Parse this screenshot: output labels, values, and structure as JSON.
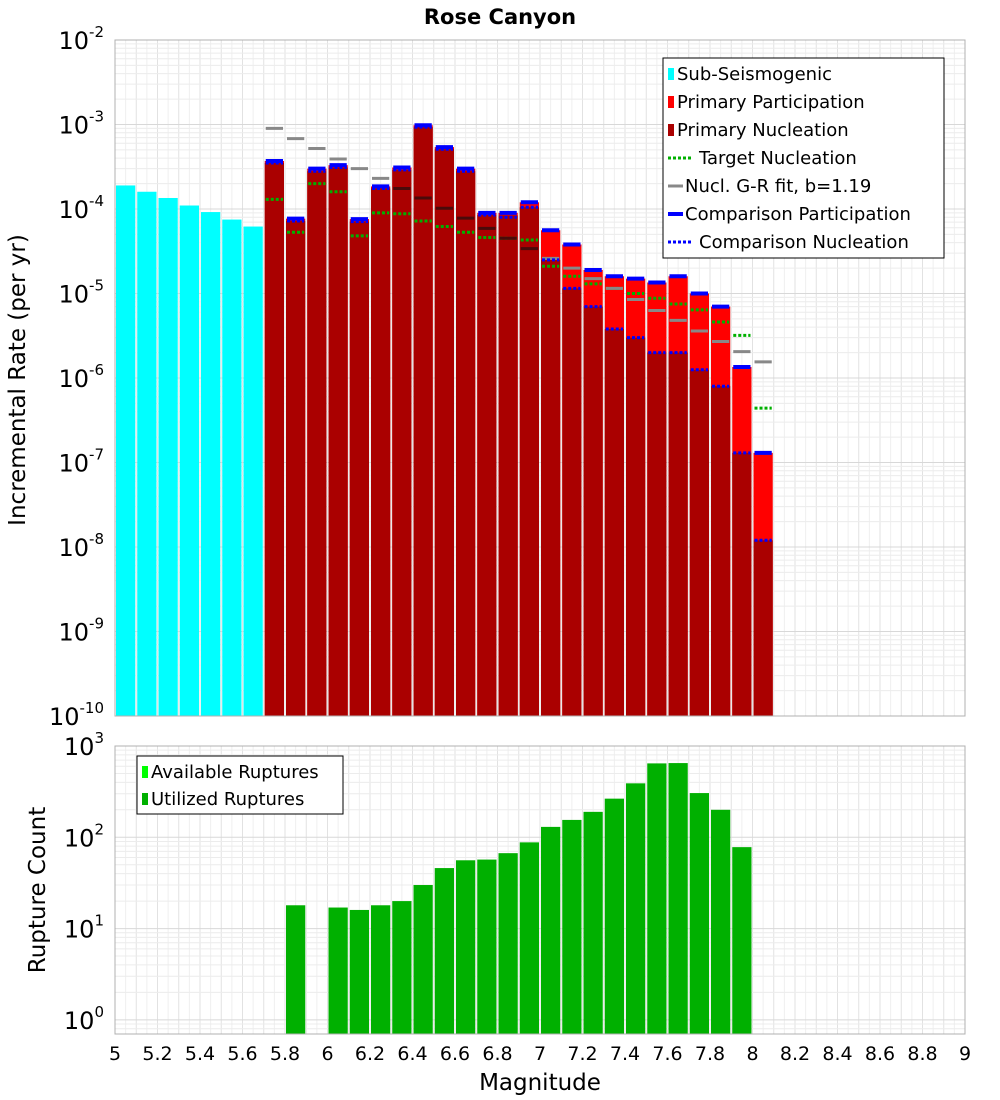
{
  "chart_data": [
    {
      "type": "bar",
      "title": "Rose Canyon",
      "xlabel": "",
      "ylabel": "Incremental Rate (per yr)",
      "yscale": "log",
      "ylim": [
        1e-10,
        0.01
      ],
      "xlim": [
        5,
        9
      ],
      "grid": true,
      "legend_position": "top-right",
      "ytick_labels": [
        {
          "base": "10",
          "exp": "-2"
        },
        {
          "base": "10",
          "exp": "-3"
        },
        {
          "base": "10",
          "exp": "-4"
        },
        {
          "base": "10",
          "exp": "-5"
        },
        {
          "base": "10",
          "exp": "-6"
        },
        {
          "base": "10",
          "exp": "-7"
        },
        {
          "base": "10",
          "exp": "-8"
        },
        {
          "base": "10",
          "exp": "-9"
        },
        {
          "base": "10",
          "exp": "-10"
        }
      ],
      "legend": [
        {
          "label": "Sub-Seismogenic",
          "style": "bar",
          "color": "#00ffff"
        },
        {
          "label": "Primary Participation",
          "style": "bar",
          "color": "#ff0000"
        },
        {
          "label": "Primary Nucleation",
          "style": "bar",
          "color": "#aa0000"
        },
        {
          "label": "Target Nucleation",
          "style": "dotted",
          "color": "#00b000"
        },
        {
          "label": "Nucl. G-R fit, b=1.19",
          "style": "solid",
          "color": "#888888"
        },
        {
          "label": "Comparison Participation",
          "style": "solid-thick",
          "color": "#0000ff"
        },
        {
          "label": "Comparison Nucleation",
          "style": "dotted",
          "color": "#0000ff"
        }
      ],
      "series": [
        {
          "name": "Sub-Seismogenic",
          "color": "#00ffff",
          "x": [
            5.05,
            5.15,
            5.25,
            5.35,
            5.45,
            5.55,
            5.65
          ],
          "values": [
            0.00019,
            0.00016,
            0.000135,
            0.00011,
            9.2e-05,
            7.5e-05,
            6.2e-05
          ]
        },
        {
          "name": "Primary Participation",
          "color": "#ff0000",
          "x": [
            5.75,
            5.85,
            5.95,
            6.05,
            6.15,
            6.25,
            6.35,
            6.45,
            6.55,
            6.65,
            6.75,
            6.85,
            6.95,
            7.05,
            7.15,
            7.25,
            7.35,
            7.45,
            7.55,
            7.65,
            7.75,
            7.85,
            7.95,
            8.05
          ],
          "values": [
            0.00037,
            7.7e-05,
            0.0003,
            0.00033,
            7.6e-05,
            0.000185,
            0.00031,
            0.00098,
            0.00054,
            0.0003,
            9e-05,
            9e-05,
            0.00012,
            5.6e-05,
            3.8e-05,
            1.9e-05,
            1.6e-05,
            1.5e-05,
            1.35e-05,
            1.6e-05,
            1e-05,
            7e-06,
            1.35e-06,
            1.3e-07
          ]
        },
        {
          "name": "Primary Nucleation",
          "color": "#aa0000",
          "x": [
            5.75,
            5.85,
            5.95,
            6.05,
            6.15,
            6.25,
            6.35,
            6.45,
            6.55,
            6.65,
            6.75,
            6.85,
            6.95,
            7.05,
            7.15,
            7.25,
            7.35,
            7.45,
            7.55,
            7.65,
            7.75,
            7.85,
            7.95,
            8.05
          ],
          "values": [
            0.00035,
            7.2e-05,
            0.00028,
            0.00031,
            7.1e-05,
            0.000175,
            0.00029,
            0.00093,
            0.00051,
            0.00028,
            8.5e-05,
            8.4e-05,
            0.000105,
            2.5e-05,
            1.15e-05,
            7e-06,
            3.8e-06,
            3e-06,
            2e-06,
            2e-06,
            1.25e-06,
            8e-07,
            1.3e-07,
            1.2e-08
          ]
        },
        {
          "name": "Target Nucleation",
          "color": "#00b000",
          "x": [
            5.75,
            5.85,
            5.95,
            6.05,
            6.15,
            6.25,
            6.35,
            6.45,
            6.55,
            6.65,
            6.75,
            6.85,
            6.95,
            7.05,
            7.15,
            7.25,
            7.35,
            7.45,
            7.55,
            7.65,
            7.75,
            7.85,
            7.95,
            8.05
          ],
          "values": [
            0.00013,
            5.3e-05,
            0.0002,
            0.00016,
            4.8e-05,
            9e-05,
            8.8e-05,
            7.2e-05,
            6.2e-05,
            5.3e-05,
            4.6e-05,
            4.5e-05,
            4.3e-05,
            2.1e-05,
            1.6e-05,
            1.3e-05,
            1.15e-05,
            1e-05,
            8.8e-06,
            7.5e-06,
            6.4e-06,
            4.6e-06,
            3.2e-06,
            4.4e-07
          ]
        },
        {
          "name": "Nucl. G-R fit, b=1.19",
          "color": "#888888",
          "x": [
            5.75,
            5.85,
            5.95,
            6.05,
            6.15,
            6.25,
            6.35,
            6.45,
            6.55,
            6.65,
            6.75,
            6.85,
            6.95,
            7.05,
            7.15,
            7.25,
            7.35,
            7.45,
            7.55,
            7.65,
            7.75,
            7.85,
            7.95,
            8.05
          ],
          "values": [
            0.0009,
            0.00068,
            0.00052,
            0.00039,
            0.0003,
            0.00023,
            0.000175,
            0.000135,
            0.000102,
            7.8e-05,
            5.9e-05,
            4.5e-05,
            3.4e-05,
            2.6e-05,
            2e-05,
            1.5e-05,
            1.15e-05,
            8.5e-06,
            6.3e-06,
            4.8e-06,
            3.6e-06,
            2.7e-06,
            2.05e-06,
            1.55e-06
          ]
        },
        {
          "name": "Comparison Participation",
          "color": "#0000ff",
          "x": [
            5.75,
            5.85,
            5.95,
            6.05,
            6.15,
            6.25,
            6.35,
            6.45,
            6.55,
            6.65,
            6.75,
            6.85,
            6.95,
            7.05,
            7.15,
            7.25,
            7.35,
            7.45,
            7.55,
            7.65,
            7.75,
            7.85,
            7.95,
            8.05
          ],
          "values": [
            0.00037,
            7.7e-05,
            0.0003,
            0.00033,
            7.6e-05,
            0.000185,
            0.00031,
            0.00098,
            0.00054,
            0.0003,
            9e-05,
            9e-05,
            0.00012,
            5.6e-05,
            3.8e-05,
            1.9e-05,
            1.6e-05,
            1.5e-05,
            1.35e-05,
            1.6e-05,
            1e-05,
            7e-06,
            1.35e-06,
            1.3e-07
          ]
        },
        {
          "name": "Comparison Nucleation",
          "color": "#0000ff",
          "x": [
            5.75,
            5.85,
            5.95,
            6.05,
            6.15,
            6.25,
            6.35,
            6.45,
            6.55,
            6.65,
            6.75,
            6.85,
            6.95,
            7.05,
            7.15,
            7.25,
            7.35,
            7.45,
            7.55,
            7.65,
            7.75,
            7.85,
            7.95,
            8.05
          ],
          "values": [
            0.00035,
            7.2e-05,
            0.00028,
            0.00031,
            7.1e-05,
            0.000175,
            0.00029,
            0.00093,
            0.00051,
            0.00028,
            8.5e-05,
            8e-05,
            0.000105,
            2.5e-05,
            1.15e-05,
            7e-06,
            3.8e-06,
            3e-06,
            2e-06,
            2e-06,
            1.25e-06,
            8e-07,
            1.3e-07,
            1.2e-08
          ]
        }
      ]
    },
    {
      "type": "bar",
      "title": "",
      "xlabel": "Magnitude",
      "ylabel": "Rupture Count",
      "yscale": "log",
      "ylim": [
        0.7,
        1000
      ],
      "xlim": [
        5,
        9
      ],
      "grid": true,
      "legend_position": "top-left",
      "xtick_labels": [
        "5",
        "5.2",
        "5.4",
        "5.6",
        "5.8",
        "6",
        "6.2",
        "6.4",
        "6.6",
        "6.8",
        "7",
        "7.2",
        "7.4",
        "7.6",
        "7.8",
        "8",
        "8.2",
        "8.4",
        "8.6",
        "8.8",
        "9"
      ],
      "ytick_labels": [
        {
          "base": "10",
          "exp": "3"
        },
        {
          "base": "10",
          "exp": "2"
        },
        {
          "base": "10",
          "exp": "1"
        },
        {
          "base": "10",
          "exp": "0"
        }
      ],
      "legend": [
        {
          "label": "Available Ruptures",
          "style": "bar",
          "color": "#00ff00"
        },
        {
          "label": "Utilized Ruptures",
          "style": "bar",
          "color": "#00b000"
        }
      ],
      "series": [
        {
          "name": "Utilized Ruptures",
          "color": "#00b000",
          "x": [
            5.85,
            6.05,
            6.15,
            6.25,
            6.35,
            6.45,
            6.55,
            6.65,
            6.75,
            6.85,
            6.95,
            7.05,
            7.15,
            7.25,
            7.35,
            7.45,
            7.55,
            7.65,
            7.75,
            7.85,
            7.95
          ],
          "values": [
            18,
            17,
            16,
            18,
            20,
            30,
            46,
            56,
            57,
            67,
            88,
            130,
            155,
            190,
            265,
            390,
            645,
            650,
            305,
            200,
            78
          ]
        }
      ]
    }
  ]
}
